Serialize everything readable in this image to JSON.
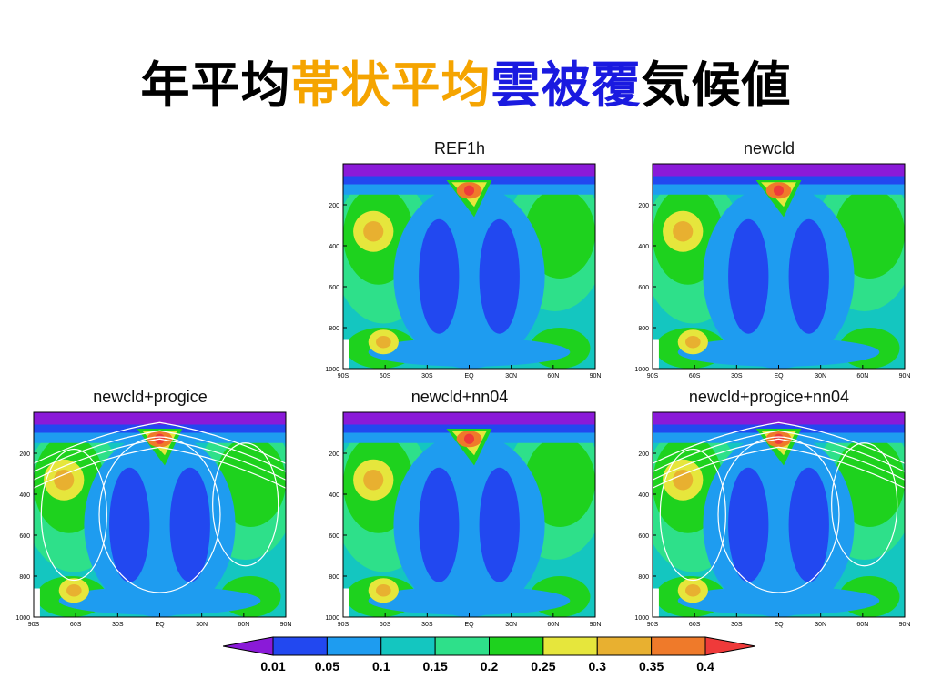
{
  "title": {
    "parts": [
      {
        "text": "年平均",
        "color": "#000000"
      },
      {
        "text": "帯状平均",
        "color": "#f5a400"
      },
      {
        "text": "雲被覆",
        "color": "#1a1ae0"
      },
      {
        "text": "気候値",
        "color": "#000000"
      }
    ]
  },
  "panels": [
    {
      "id": "ref1h",
      "title": "REF1h",
      "contours": false
    },
    {
      "id": "newcld",
      "title": "newcld",
      "contours": false
    },
    {
      "id": "newcld-progice",
      "title": "newcld+progice",
      "contours": true
    },
    {
      "id": "newcld-nn04",
      "title": "newcld+nn04",
      "contours": false
    },
    {
      "id": "newcld-progice-nn04",
      "title": "newcld+progice+nn04",
      "contours": true
    }
  ],
  "axes": {
    "x_ticks": [
      "90S",
      "60S",
      "30S",
      "EQ",
      "30N",
      "60N",
      "90N"
    ],
    "y_ticks": [
      "200",
      "400",
      "600",
      "800",
      "1000"
    ]
  },
  "colorbar": {
    "labels": [
      "0.01",
      "0.05",
      "0.1",
      "0.15",
      "0.2",
      "0.25",
      "0.3",
      "0.35",
      "0.4"
    ],
    "colors": [
      "#8a1ad8",
      "#2248f0",
      "#1e9cf0",
      "#14c6c0",
      "#2ee08a",
      "#1ed21e",
      "#e6e63c",
      "#e8b030",
      "#ef7a2a",
      "#ef3a3a"
    ]
  }
}
